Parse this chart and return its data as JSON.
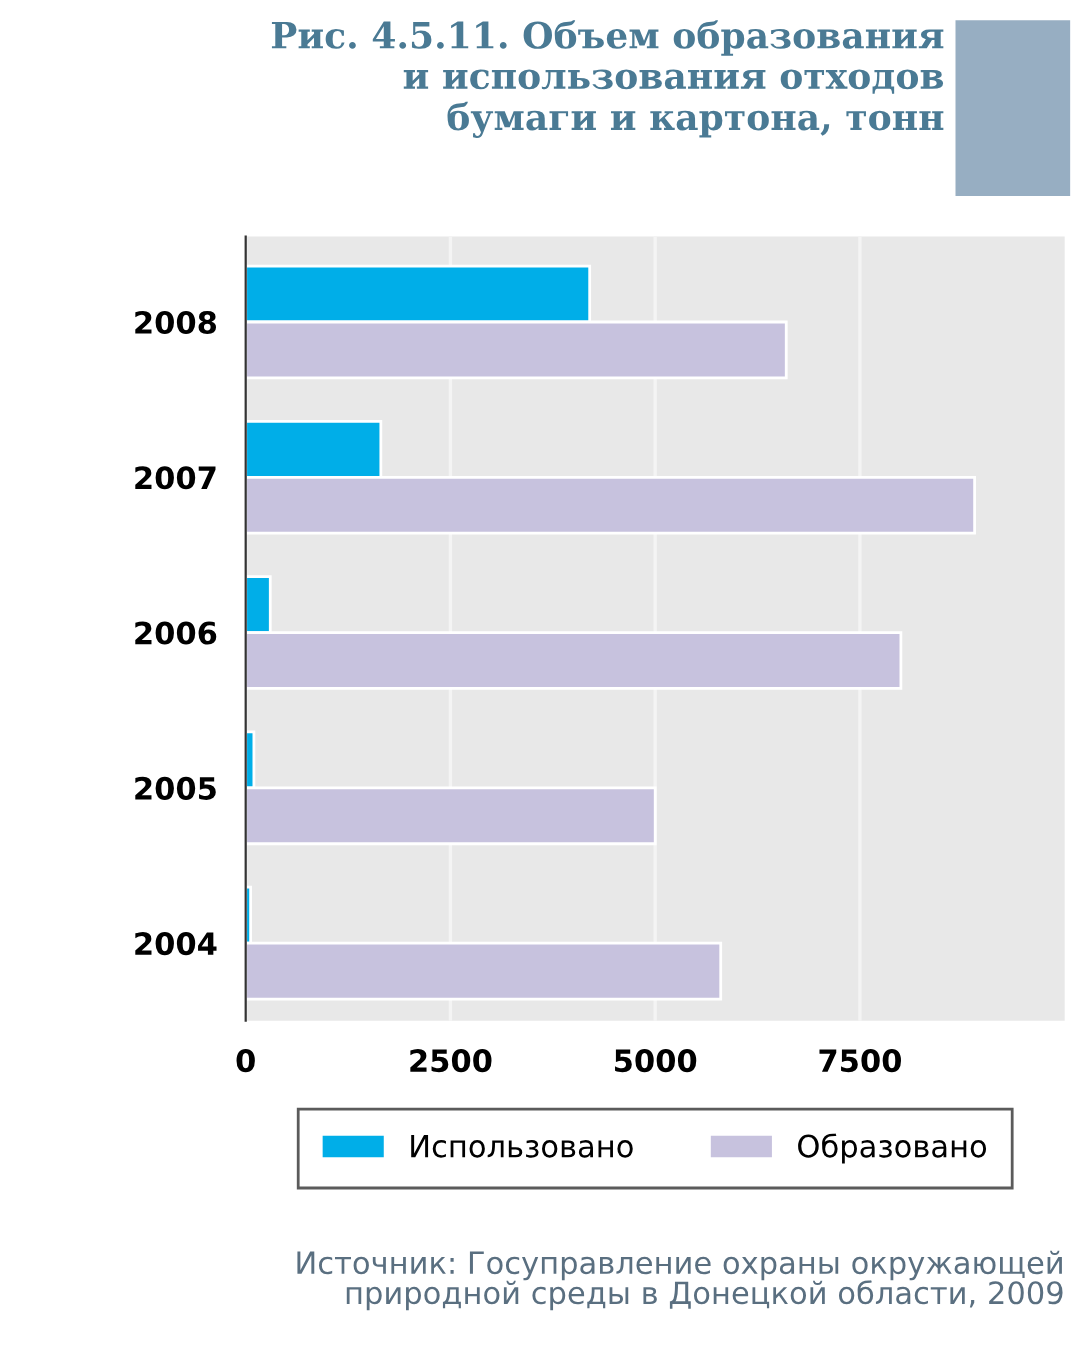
{
  "chart_data": {
    "type": "bar",
    "orientation": "horizontal",
    "title": "Рис. 4.5.11. Объем образования\nи использования отходов\nбумаги и картона, тонн",
    "categories": [
      "2008",
      "2007",
      "2006",
      "2005",
      "2004"
    ],
    "series": [
      {
        "name": "Использовано",
        "color": "#00aee8",
        "values": [
          4200,
          1650,
          300,
          100,
          60
        ]
      },
      {
        "name": "Образовано",
        "color": "#c7c2de",
        "values": [
          6600,
          8900,
          8000,
          5000,
          5800
        ]
      }
    ],
    "xlim": [
      0,
      10000
    ],
    "xticks": [
      0,
      2500,
      5000,
      7500
    ],
    "grid": "x",
    "legend": "bottom",
    "annotations": [
      "Источник: Госуправление охраны окружающей\nприродной среды в Донецкой области, 2009"
    ]
  }
}
